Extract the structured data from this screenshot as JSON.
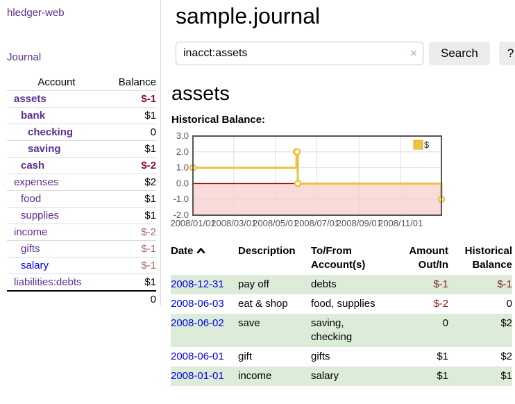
{
  "app": {
    "brand": "hledger-web",
    "nav_journal": "Journal"
  },
  "colors": {
    "link_purple": "#5c2d91",
    "link_blue": "#0000ee",
    "negative_strong": "#8b0e2a",
    "negative_soft": "#aa5f5f",
    "negative_register": "#8b1a1a",
    "row_stripe_green": "#dcecd9",
    "button_bg": "#ececec"
  },
  "icons": {
    "clear_search": "×",
    "date_sort": "chevron-up"
  },
  "sidebar": {
    "table": {
      "headers": [
        "Account",
        "Balance"
      ],
      "rows": [
        {
          "account": "assets",
          "balance": "$-1",
          "depth": 1,
          "bold": true,
          "negative": true,
          "link_color": "purple"
        },
        {
          "account": "bank",
          "balance": "$1",
          "depth": 2,
          "bold": true,
          "negative": false,
          "link_color": "purple"
        },
        {
          "account": "checking",
          "balance": "0",
          "depth": 3,
          "bold": true,
          "negative": false,
          "link_color": "purple"
        },
        {
          "account": "saving",
          "balance": "$1",
          "depth": 3,
          "bold": true,
          "negative": false,
          "link_color": "purple"
        },
        {
          "account": "cash",
          "balance": "$-2",
          "depth": 2,
          "bold": true,
          "negative": true,
          "link_color": "purple"
        },
        {
          "account": "expenses",
          "balance": "$2",
          "depth": 1,
          "bold": false,
          "negative": false,
          "link_color": "purple"
        },
        {
          "account": "food",
          "balance": "$1",
          "depth": 2,
          "bold": false,
          "negative": false,
          "link_color": "purple"
        },
        {
          "account": "supplies",
          "balance": "$1",
          "depth": 2,
          "bold": false,
          "negative": false,
          "link_color": "purple"
        },
        {
          "account": "income",
          "balance": "$-2",
          "depth": 1,
          "bold": false,
          "negative": true,
          "link_color": "purple"
        },
        {
          "account": "gifts",
          "balance": "$-1",
          "depth": 2,
          "bold": false,
          "negative": true,
          "link_color": "purple"
        },
        {
          "account": "salary",
          "balance": "$-1",
          "depth": 2,
          "bold": false,
          "negative": true,
          "link_color": "blue"
        },
        {
          "account": "liabilities:debts",
          "balance": "$1",
          "depth": 1,
          "bold": false,
          "negative": false,
          "link_color": "purple"
        }
      ],
      "total": "0"
    }
  },
  "main": {
    "title": "sample.journal",
    "search": {
      "value": "inacct:assets",
      "button": "Search",
      "help_button": "?"
    },
    "account_heading": "assets"
  },
  "chart_data": {
    "type": "line",
    "step": true,
    "title": "Historical Balance:",
    "x": [
      "2008-01-01",
      "2008-06-01",
      "2008-06-02",
      "2008-06-03",
      "2008-12-31"
    ],
    "series": [
      {
        "name": "$",
        "values": [
          1,
          2,
          2,
          0,
          -1
        ]
      }
    ],
    "xlim": [
      "2008-01-01",
      "2008-12-31"
    ],
    "ylim": [
      -2,
      3
    ],
    "x_tick_labels": [
      "2008/01/01",
      "2008/03/01",
      "2008/05/01",
      "2008/07/01",
      "2008/09/01",
      "2008/11/01"
    ],
    "y_tick_labels": [
      "3.0",
      "2.0",
      "1.0",
      "0.0",
      "-1.0",
      "-2.0"
    ],
    "grid": true,
    "legend": {
      "label": "$",
      "position": "top-right"
    },
    "colors": {
      "line": "#edc240",
      "marker_fill": "#ffffff",
      "legend_border": "#d8ae33",
      "negative_region": "#fbdada",
      "zero_line": "#8b0000",
      "border": "#545454",
      "gridline": "#dddddd",
      "tick_text": "#545454"
    }
  },
  "register": {
    "headers": {
      "date": "Date",
      "description": "Description",
      "accounts": "To/From Account(s)",
      "amount": "Amount Out/In",
      "balance": "Historical Balance"
    },
    "rows": [
      {
        "date": "2008-12-31",
        "description": "pay off",
        "accounts": "debts",
        "amount": "$-1",
        "balance": "$-1"
      },
      {
        "date": "2008-06-03",
        "description": "eat & shop",
        "accounts": "food, supplies",
        "amount": "$-2",
        "balance": "0"
      },
      {
        "date": "2008-06-02",
        "description": "save",
        "accounts": "saving, checking",
        "amount": "0",
        "balance": "$2"
      },
      {
        "date": "2008-06-01",
        "description": "gift",
        "accounts": "gifts",
        "amount": "$1",
        "balance": "$2"
      },
      {
        "date": "2008-01-01",
        "description": "income",
        "accounts": "salary",
        "amount": "$1",
        "balance": "$1"
      }
    ]
  }
}
